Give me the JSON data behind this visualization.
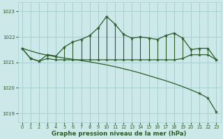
{
  "xlabel": "Graphe pression niveau de la mer (hPa)",
  "bg_color": "#cde8e8",
  "grid_color": "#a8d0d0",
  "line_color": "#2a5c2a",
  "xlim": [
    -0.5,
    23.5
  ],
  "ylim": [
    1018.65,
    1023.35
  ],
  "yticks": [
    1019,
    1020,
    1021,
    1022,
    1023
  ],
  "xticks": [
    0,
    1,
    2,
    3,
    4,
    5,
    6,
    7,
    8,
    9,
    10,
    11,
    12,
    13,
    14,
    15,
    16,
    17,
    18,
    19,
    20,
    21,
    22,
    23
  ],
  "flat_line": [
    1021.55,
    1021.15,
    1021.05,
    1021.15,
    1021.1,
    1021.1,
    1021.1,
    1021.1,
    1021.1,
    1021.1,
    1021.1,
    1021.1,
    1021.1,
    1021.1,
    1021.1,
    1021.1,
    1021.1,
    1021.1,
    1021.1,
    1021.15,
    1021.3,
    1021.3,
    1021.3,
    1021.1
  ],
  "spike_line": [
    1021.55,
    1021.15,
    1021.05,
    1021.3,
    1021.25,
    1021.6,
    1021.8,
    1021.9,
    1022.05,
    1022.35,
    1022.8,
    1022.5,
    1022.1,
    1021.95,
    1022.0,
    1021.95,
    1021.9,
    1022.05,
    1022.15,
    1021.95,
    1021.5,
    1021.55,
    1021.55,
    1021.1
  ],
  "diag_line": [
    1021.55,
    1021.45,
    1021.35,
    1021.28,
    1021.22,
    1021.17,
    1021.12,
    1021.07,
    1021.02,
    1020.96,
    1020.9,
    1020.83,
    1020.75,
    1020.67,
    1020.58,
    1020.48,
    1020.38,
    1020.28,
    1020.17,
    1020.05,
    1019.92,
    1019.78,
    1019.6,
    1019.05
  ],
  "figsize": [
    3.2,
    2.0
  ],
  "dpi": 100
}
